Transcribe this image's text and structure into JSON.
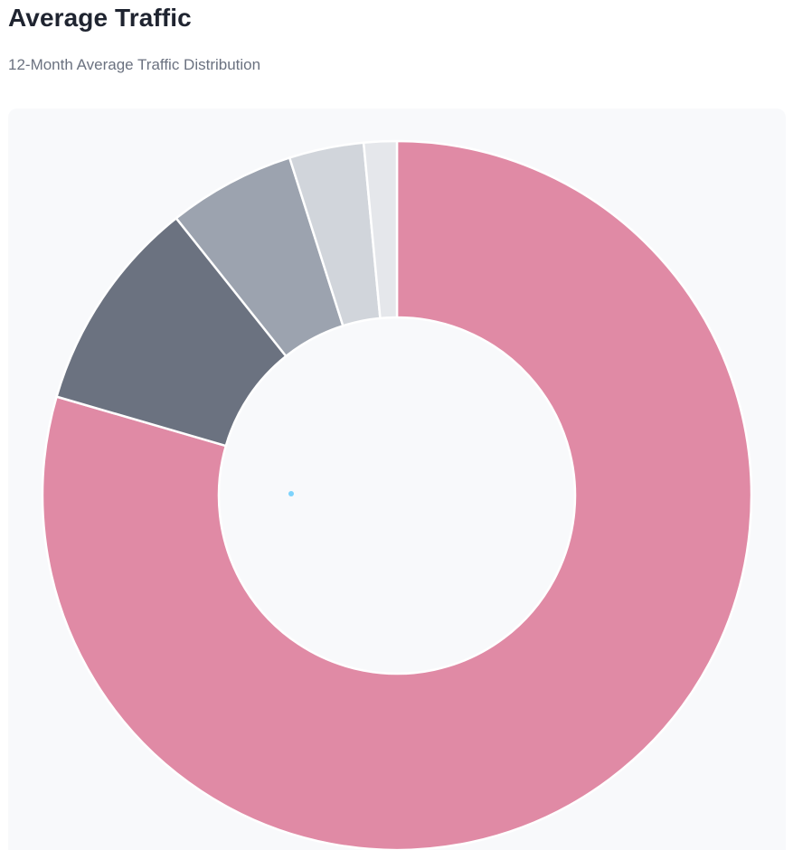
{
  "header": {
    "title": "Average Traffic",
    "subtitle": "12-Month Average Traffic Distribution"
  },
  "chart_data": {
    "type": "pie",
    "variant": "donut",
    "legend": "none",
    "values": [
      79.5,
      9.8,
      5.8,
      3.4,
      1.5
    ],
    "colors": [
      "#e08aa5",
      "#6b7280",
      "#9ca3af",
      "#d1d5db",
      "#e5e7eb"
    ],
    "start_angle_deg": 0,
    "direction": "clockwise"
  }
}
